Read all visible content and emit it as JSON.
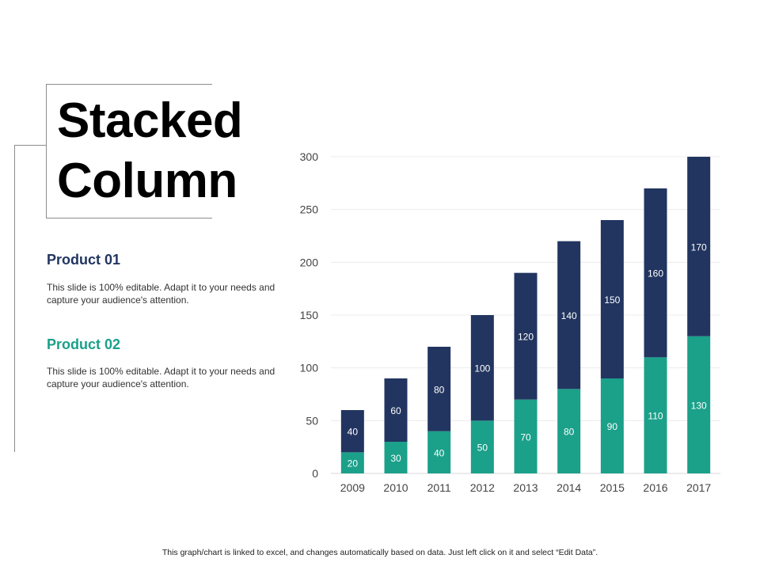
{
  "slide": {
    "title_line1": "Stacked",
    "title_line2": "Column",
    "footer": "This graph/chart is linked to excel,  and changes automatically based on data. Just left click on it and select “Edit Data”."
  },
  "products": [
    {
      "title": "Product 01",
      "description": "This slide is 100% editable. Adapt it to your needs and capture your audience's attention.",
      "color": "#223560"
    },
    {
      "title": "Product 02",
      "description": "This slide is 100% editable. Adapt it to your needs and capture your audience's attention.",
      "color": "#1ba08a"
    }
  ],
  "chart_data": {
    "type": "bar",
    "stacked": true,
    "categories": [
      "2009",
      "2010",
      "2011",
      "2012",
      "2013",
      "2014",
      "2015",
      "2016",
      "2017"
    ],
    "series": [
      {
        "values": [
          20,
          30,
          40,
          50,
          70,
          80,
          90,
          110,
          130
        ],
        "color": "#1ba08a"
      },
      {
        "values": [
          40,
          60,
          80,
          100,
          120,
          140,
          150,
          160,
          170
        ],
        "color": "#223560"
      }
    ],
    "ylim": [
      0,
      300
    ],
    "yticks": [
      0,
      50,
      100,
      150,
      200,
      250,
      300
    ],
    "grid": true
  }
}
